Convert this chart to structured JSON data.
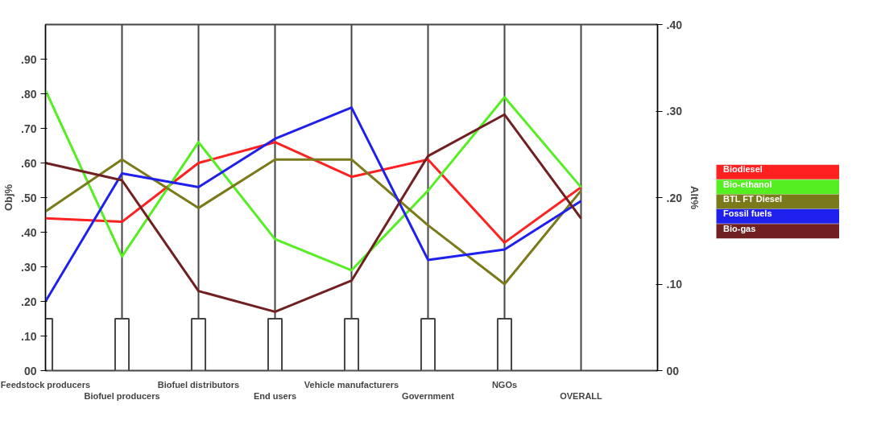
{
  "chart_data": {
    "type": "line",
    "ylabel": "Obj%",
    "y2label": "Alt%",
    "categories": [
      "Feedstock producers",
      "Biofuel producers",
      "Biofuel distributors",
      "End users",
      "Vehicle manufacturers",
      "Government",
      "NGOs",
      "OVERALL"
    ],
    "ylim": [
      0,
      1
    ],
    "yticks": [
      {
        "value": 0,
        "label": "00"
      },
      {
        "value": 0.1,
        "label": ".10"
      },
      {
        "value": 0.2,
        "label": ".20"
      },
      {
        "value": 0.3,
        "label": ".30"
      },
      {
        "value": 0.4,
        "label": ".40"
      },
      {
        "value": 0.5,
        "label": ".50"
      },
      {
        "value": 0.6,
        "label": ".60"
      },
      {
        "value": 0.7,
        "label": ".70"
      },
      {
        "value": 0.8,
        "label": ".80"
      },
      {
        "value": 0.9,
        "label": ".90"
      }
    ],
    "y2lim": [
      0,
      0.4
    ],
    "y2ticks": [
      {
        "value": 0,
        "label": "00"
      },
      {
        "value": 0.1,
        "label": ".10"
      },
      {
        "value": 0.2,
        "label": ".20"
      },
      {
        "value": 0.3,
        "label": ".30"
      },
      {
        "value": 0.4,
        "label": ".40"
      }
    ],
    "grid": "x",
    "legend": "right",
    "series": [
      {
        "type": "bar",
        "color": "#ffffff",
        "values": [
          0.15,
          0.15,
          0.15,
          0.15,
          0.15,
          0.15,
          0.15,
          null
        ]
      },
      {
        "name": "Biodiesel",
        "color": "#ff2020",
        "values": [
          0.44,
          0.43,
          0.6,
          0.66,
          0.56,
          0.61,
          0.37,
          0.53
        ]
      },
      {
        "name": "Bio-ethanol",
        "color": "#55ee22",
        "values": [
          0.81,
          0.33,
          0.66,
          0.38,
          0.29,
          0.52,
          0.79,
          0.53
        ]
      },
      {
        "name": "BTL FT Diesel",
        "color": "#7a7a1a",
        "values": [
          0.46,
          0.61,
          0.47,
          0.61,
          0.61,
          0.42,
          0.25,
          0.52
        ]
      },
      {
        "name": "Fossil fuels",
        "color": "#2020ee",
        "values": [
          0.2,
          0.57,
          0.53,
          0.67,
          0.76,
          0.32,
          0.35,
          0.49
        ]
      },
      {
        "name": "Bio-gas",
        "color": "#702020",
        "values": [
          0.6,
          0.55,
          0.23,
          0.17,
          0.26,
          0.62,
          0.74,
          0.44
        ]
      }
    ]
  }
}
